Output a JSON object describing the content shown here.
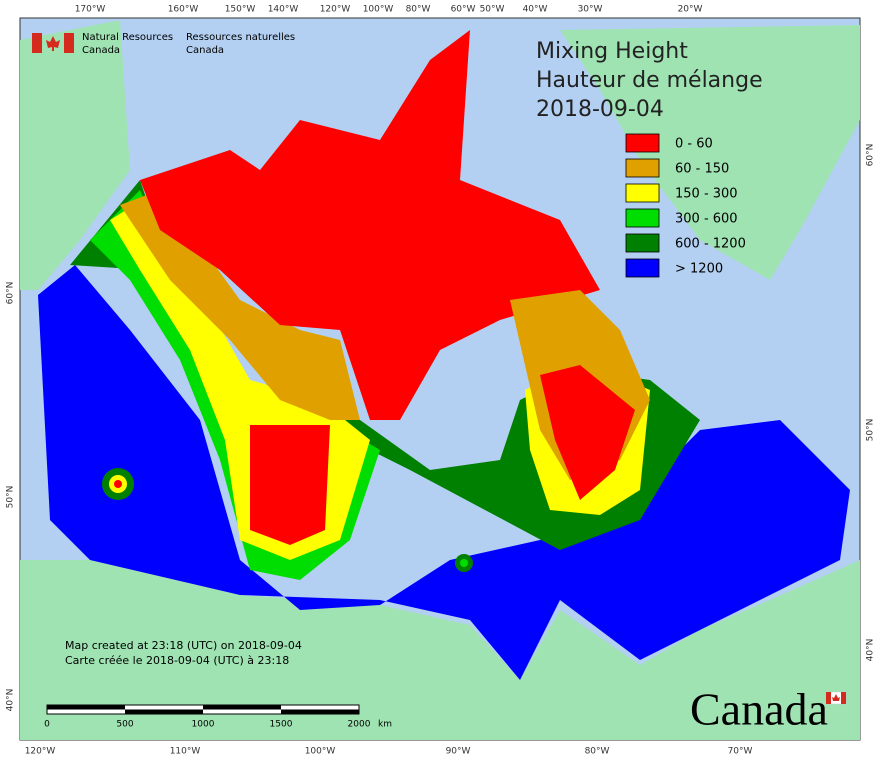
{
  "header": {
    "dept_en": [
      "Natural Resources",
      "Canada"
    ],
    "dept_fr": [
      "Ressources naturelles",
      "Canada"
    ]
  },
  "title": [
    "Mixing Height",
    "Hauteur de mélange",
    "2018-09-04"
  ],
  "legend": [
    {
      "label": "0 - 60",
      "color": "#ff0000"
    },
    {
      "label": "60 - 150",
      "color": "#e0a000"
    },
    {
      "label": "150 - 300",
      "color": "#ffff00"
    },
    {
      "label": "300 - 600",
      "color": "#00dd00"
    },
    {
      "label": "600 - 1200",
      "color": "#008000"
    },
    {
      "label": "> 1200",
      "color": "#0000ff"
    }
  ],
  "top_ticks": [
    "170°W",
    "160°W",
    "150°W",
    "140°W",
    "120°W",
    "100°W",
    "80°W",
    "60°W",
    "50°W",
    "40°W",
    "30°W",
    "20°W"
  ],
  "bottom_ticks": [
    "120°W",
    "110°W",
    "100°W",
    "90°W",
    "80°W",
    "70°W"
  ],
  "left_ticks": [
    "60°N",
    "50°N",
    "40°N"
  ],
  "right_ticks": [
    "60°N",
    "50°N",
    "40°N"
  ],
  "credits": [
    "Map created at 23:18 (UTC) on 2018-09-04",
    "Carte créée le 2018-09-04 (UTC) à 23:18"
  ],
  "scale_bar": {
    "labels": [
      "0",
      "500",
      "1000",
      "1500",
      "2000"
    ],
    "unit": "km"
  },
  "wordmark": "Canada"
}
